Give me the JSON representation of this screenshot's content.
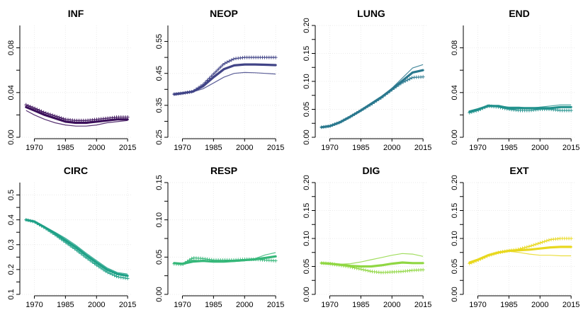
{
  "chart_data": [
    {
      "type": "line",
      "title": "INF",
      "color": "#3b0f5a",
      "x": [
        1966,
        1970,
        1975,
        1980,
        1985,
        1990,
        1995,
        2000,
        2005,
        2010,
        2015
      ],
      "ylim": [
        0,
        0.1
      ],
      "yticks": [
        "0.00",
        "0.04",
        "0.08"
      ],
      "ytick_values": [
        0,
        0.04,
        0.08
      ],
      "xticks": [
        "1970",
        "1985",
        "2000",
        "2015"
      ],
      "xtick_values": [
        1970,
        1985,
        2000,
        2015
      ],
      "series": [
        {
          "role": "main",
          "values": [
            0.027,
            0.024,
            0.02,
            0.017,
            0.014,
            0.013,
            0.013,
            0.014,
            0.015,
            0.016,
            0.016
          ]
        },
        {
          "role": "plus",
          "values": [
            0.029,
            0.026,
            0.022,
            0.019,
            0.016,
            0.015,
            0.015,
            0.016,
            0.017,
            0.018,
            0.018
          ]
        },
        {
          "role": "thin",
          "values": [
            0.024,
            0.02,
            0.016,
            0.013,
            0.011,
            0.01,
            0.01,
            0.011,
            0.013,
            0.014,
            0.015
          ]
        }
      ]
    },
    {
      "type": "line",
      "title": "NEOP",
      "color": "#414487",
      "x": [
        1966,
        1970,
        1975,
        1980,
        1985,
        1990,
        1995,
        2000,
        2005,
        2010,
        2015
      ],
      "ylim": [
        0.25,
        0.6
      ],
      "yticks": [
        "0.25",
        "0.35",
        "0.45",
        "0.55"
      ],
      "ytick_values": [
        0.25,
        0.35,
        0.45,
        0.55
      ],
      "xticks": [
        "1970",
        "1985",
        "2000",
        "2015"
      ],
      "xtick_values": [
        1970,
        1985,
        2000,
        2015
      ],
      "series": [
        {
          "role": "main",
          "values": [
            0.385,
            0.388,
            0.393,
            0.41,
            0.438,
            0.463,
            0.475,
            0.478,
            0.478,
            0.477,
            0.476
          ]
        },
        {
          "role": "plus",
          "values": [
            0.385,
            0.388,
            0.393,
            0.415,
            0.448,
            0.48,
            0.496,
            0.5,
            0.5,
            0.5,
            0.5
          ]
        },
        {
          "role": "thin",
          "values": [
            0.382,
            0.386,
            0.392,
            0.402,
            0.42,
            0.438,
            0.45,
            0.453,
            0.452,
            0.45,
            0.448
          ]
        }
      ]
    },
    {
      "type": "line",
      "title": "LUNG",
      "color": "#2a788e",
      "x": [
        1966,
        1970,
        1975,
        1980,
        1985,
        1990,
        1995,
        2000,
        2005,
        2010,
        2015
      ],
      "ylim": [
        0,
        0.2
      ],
      "yticks": [
        "0.00",
        "0.05",
        "0.10",
        "0.15",
        "0.20"
      ],
      "ytick_values": [
        0,
        0.05,
        0.1,
        0.15,
        0.2
      ],
      "xticks": [
        "1970",
        "1985",
        "2000",
        "2015"
      ],
      "xtick_values": [
        1970,
        1985,
        2000,
        2015
      ],
      "series": [
        {
          "role": "main",
          "values": [
            0.018,
            0.02,
            0.027,
            0.037,
            0.048,
            0.06,
            0.072,
            0.086,
            0.101,
            0.116,
            0.12
          ]
        },
        {
          "role": "plus",
          "values": [
            0.018,
            0.02,
            0.027,
            0.037,
            0.048,
            0.059,
            0.071,
            0.085,
            0.098,
            0.107,
            0.108
          ]
        },
        {
          "role": "thin",
          "values": [
            0.018,
            0.02,
            0.027,
            0.037,
            0.049,
            0.061,
            0.073,
            0.088,
            0.106,
            0.124,
            0.13
          ]
        }
      ]
    },
    {
      "type": "line",
      "title": "END",
      "color": "#21918c",
      "x": [
        1966,
        1970,
        1975,
        1980,
        1985,
        1990,
        1995,
        2000,
        2005,
        2010,
        2015
      ],
      "ylim": [
        0,
        0.1
      ],
      "yticks": [
        "0.00",
        "0.04",
        "0.08"
      ],
      "ytick_values": [
        0,
        0.04,
        0.08
      ],
      "xticks": [
        "1970",
        "1985",
        "2000",
        "2015"
      ],
      "xtick_values": [
        1970,
        1985,
        2000,
        2015
      ],
      "series": [
        {
          "role": "main",
          "values": [
            0.023,
            0.025,
            0.028,
            0.028,
            0.026,
            0.026,
            0.026,
            0.026,
            0.026,
            0.027,
            0.027
          ]
        },
        {
          "role": "plus",
          "values": [
            0.022,
            0.024,
            0.028,
            0.027,
            0.025,
            0.024,
            0.024,
            0.025,
            0.025,
            0.024,
            0.024
          ]
        },
        {
          "role": "thin",
          "values": [
            0.023,
            0.025,
            0.029,
            0.028,
            0.027,
            0.027,
            0.026,
            0.027,
            0.028,
            0.029,
            0.029
          ]
        }
      ]
    },
    {
      "type": "line",
      "title": "CIRC",
      "color": "#1fa187",
      "x": [
        1966,
        1970,
        1975,
        1980,
        1985,
        1990,
        1995,
        2000,
        2005,
        2010,
        2015
      ],
      "ylim": [
        0.1,
        0.55
      ],
      "yticks": [
        "0.1",
        "0.2",
        "0.3",
        "0.4",
        "0.5"
      ],
      "ytick_values": [
        0.1,
        0.2,
        0.3,
        0.4,
        0.5
      ],
      "xticks": [
        "1970",
        "1985",
        "2000",
        "2015"
      ],
      "xtick_values": [
        1970,
        1985,
        2000,
        2015
      ],
      "series": [
        {
          "role": "main",
          "values": [
            0.4,
            0.393,
            0.37,
            0.345,
            0.318,
            0.29,
            0.258,
            0.228,
            0.2,
            0.182,
            0.175
          ]
        },
        {
          "role": "plus",
          "values": [
            0.4,
            0.392,
            0.368,
            0.34,
            0.31,
            0.28,
            0.248,
            0.218,
            0.19,
            0.171,
            0.164
          ]
        },
        {
          "role": "thin",
          "values": [
            0.4,
            0.395,
            0.373,
            0.35,
            0.326,
            0.298,
            0.266,
            0.236,
            0.207,
            0.188,
            0.182
          ]
        }
      ]
    },
    {
      "type": "line",
      "title": "RESP",
      "color": "#35b779",
      "x": [
        1966,
        1970,
        1975,
        1980,
        1985,
        1990,
        1995,
        2000,
        2005,
        2010,
        2015
      ],
      "ylim": [
        0,
        0.15
      ],
      "yticks": [
        "0.00",
        "0.05",
        "0.10",
        "0.15"
      ],
      "ytick_values": [
        0,
        0.05,
        0.1,
        0.15
      ],
      "xticks": [
        "1970",
        "1985",
        "2000",
        "2015"
      ],
      "xtick_values": [
        1970,
        1985,
        2000,
        2015
      ],
      "series": [
        {
          "role": "main",
          "values": [
            0.042,
            0.041,
            0.044,
            0.045,
            0.044,
            0.044,
            0.045,
            0.046,
            0.047,
            0.049,
            0.051
          ]
        },
        {
          "role": "plus",
          "values": [
            0.041,
            0.04,
            0.049,
            0.048,
            0.046,
            0.046,
            0.046,
            0.047,
            0.047,
            0.046,
            0.045
          ]
        },
        {
          "role": "thin",
          "values": [
            0.042,
            0.042,
            0.046,
            0.045,
            0.044,
            0.044,
            0.044,
            0.045,
            0.048,
            0.053,
            0.056
          ]
        }
      ]
    },
    {
      "type": "line",
      "title": "DIG",
      "color": "#90d743",
      "x": [
        1966,
        1970,
        1975,
        1980,
        1985,
        1990,
        1995,
        2000,
        2005,
        2010,
        2015
      ],
      "ylim": [
        0,
        0.2
      ],
      "yticks": [
        "0.00",
        "0.05",
        "0.10",
        "0.15",
        "0.20"
      ],
      "ytick_values": [
        0,
        0.05,
        0.1,
        0.15,
        0.2
      ],
      "xticks": [
        "1970",
        "1985",
        "2000",
        "2015"
      ],
      "xtick_values": [
        1970,
        1985,
        2000,
        2015
      ],
      "series": [
        {
          "role": "main",
          "values": [
            0.056,
            0.055,
            0.053,
            0.051,
            0.05,
            0.05,
            0.052,
            0.055,
            0.057,
            0.056,
            0.056
          ]
        },
        {
          "role": "plus",
          "values": [
            0.056,
            0.055,
            0.052,
            0.049,
            0.045,
            0.041,
            0.039,
            0.04,
            0.041,
            0.043,
            0.044
          ]
        },
        {
          "role": "thin",
          "values": [
            0.056,
            0.055,
            0.054,
            0.055,
            0.058,
            0.062,
            0.066,
            0.07,
            0.073,
            0.072,
            0.068
          ]
        }
      ]
    },
    {
      "type": "line",
      "title": "EXT",
      "color": "#e8d81e",
      "x": [
        1966,
        1970,
        1975,
        1980,
        1985,
        1990,
        1995,
        2000,
        2005,
        2010,
        2015
      ],
      "ylim": [
        0,
        0.2
      ],
      "yticks": [
        "0.00",
        "0.05",
        "0.10",
        "0.15",
        "0.20"
      ],
      "ytick_values": [
        0,
        0.05,
        0.1,
        0.15,
        0.2
      ],
      "xticks": [
        "1970",
        "1985",
        "2000",
        "2015"
      ],
      "xtick_values": [
        1970,
        1985,
        2000,
        2015
      ],
      "series": [
        {
          "role": "main",
          "values": [
            0.057,
            0.062,
            0.07,
            0.075,
            0.078,
            0.079,
            0.08,
            0.082,
            0.084,
            0.085,
            0.085
          ]
        },
        {
          "role": "plus",
          "values": [
            0.055,
            0.061,
            0.069,
            0.075,
            0.078,
            0.081,
            0.086,
            0.092,
            0.098,
            0.1,
            0.1
          ]
        },
        {
          "role": "thin",
          "values": [
            0.058,
            0.063,
            0.071,
            0.076,
            0.077,
            0.075,
            0.072,
            0.07,
            0.07,
            0.069,
            0.069
          ]
        }
      ]
    }
  ]
}
